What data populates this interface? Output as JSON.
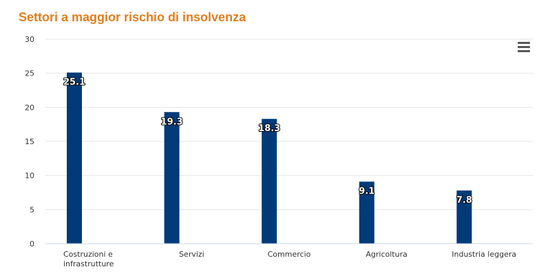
{
  "chart_data": {
    "type": "bar",
    "title": "Settori a maggior rischio di insolvenza",
    "categories": [
      [
        "Costruzioni e",
        "infrastrutture"
      ],
      [
        "Servizi"
      ],
      [
        "Commercio"
      ],
      [
        "Agricoltura"
      ],
      [
        "Industria leggera"
      ]
    ],
    "values": [
      25.1,
      19.3,
      18.3,
      9.1,
      7.8
    ],
    "data_labels": [
      "25.1",
      "19.3",
      "18.3",
      "9.1",
      "7.8"
    ],
    "ylim": [
      0,
      30
    ],
    "yticks": [
      "0",
      "5",
      "10",
      "15",
      "20",
      "25",
      "30"
    ],
    "grid": true,
    "legend": "none",
    "colors": {
      "bar": "#003a78",
      "title": "#e07f1f",
      "grid": "#e6e6e6"
    }
  },
  "menu_icon": "hamburger-menu-icon"
}
